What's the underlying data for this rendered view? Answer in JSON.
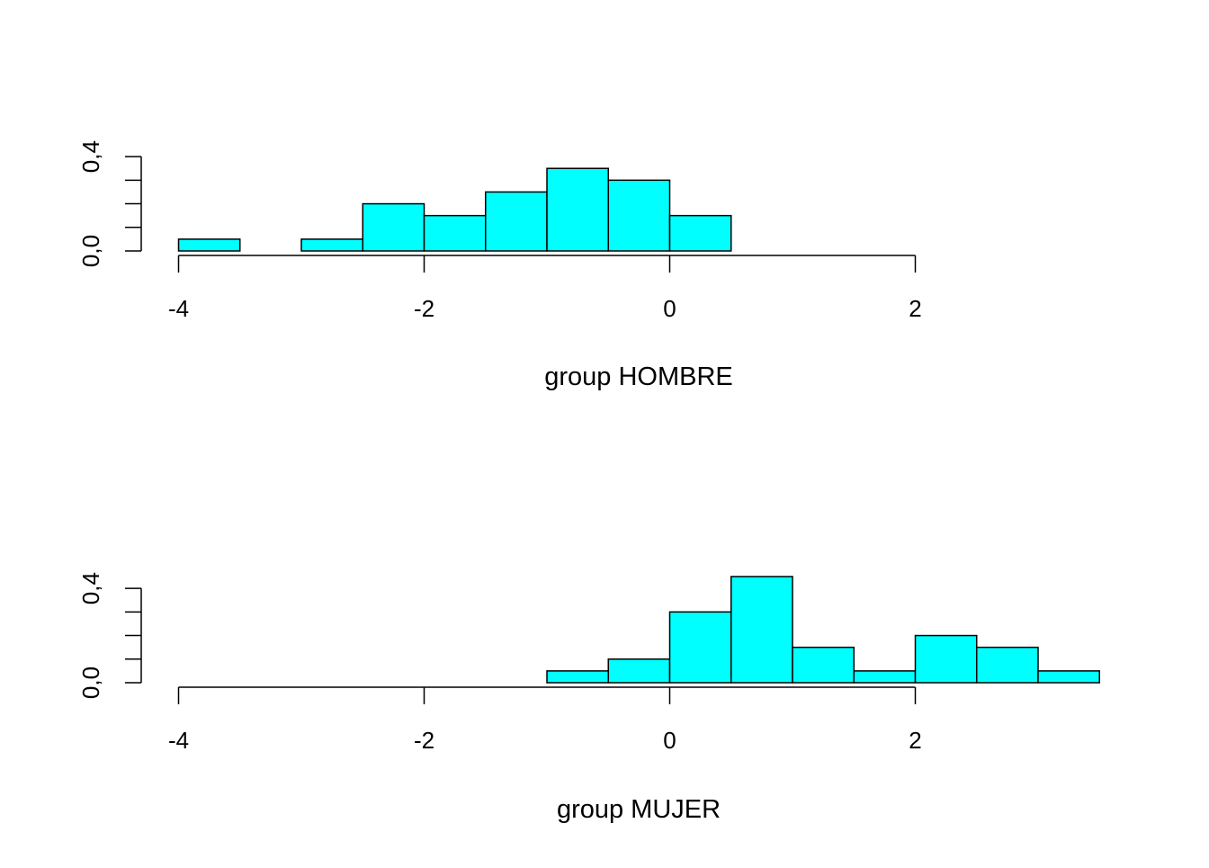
{
  "chart_data": [
    {
      "type": "bar",
      "xlabel": "group HOMBRE",
      "ylabel": "",
      "bin_width": 0.5,
      "bins": [
        [
          -4.0,
          -3.5
        ],
        [
          -3.5,
          -3.0
        ],
        [
          -3.0,
          -2.5
        ],
        [
          -2.5,
          -2.0
        ],
        [
          -2.0,
          -1.5
        ],
        [
          -1.5,
          -1.0
        ],
        [
          -1.0,
          -0.5
        ],
        [
          -0.5,
          0.0
        ],
        [
          0.0,
          0.5
        ],
        [
          0.5,
          1.0
        ],
        [
          1.0,
          1.5
        ],
        [
          1.5,
          2.0
        ],
        [
          2.0,
          2.5
        ],
        [
          2.5,
          3.0
        ],
        [
          3.0,
          3.5
        ]
      ],
      "values": [
        0.05,
        0.0,
        0.05,
        0.2,
        0.15,
        0.25,
        0.35,
        0.3,
        0.15,
        0.0,
        0.0,
        0.0,
        0.0,
        0.0,
        0.0
      ],
      "xlim": [
        -4,
        3.5
      ],
      "ylim": [
        0,
        0.45
      ],
      "x_ticks": [
        -4,
        -2,
        0,
        2
      ],
      "x_tick_labels": [
        "-4",
        "-2",
        "0",
        "2"
      ],
      "y_ticks": [
        0,
        0.1,
        0.2,
        0.3,
        0.4
      ],
      "y_tick_labels": [
        "0,0",
        "0,4"
      ],
      "y_labeled_ticks": [
        0,
        0.4
      ],
      "bar_color": "#00ffff",
      "grid": false
    },
    {
      "type": "bar",
      "xlabel": "group MUJER",
      "ylabel": "",
      "bin_width": 0.5,
      "bins": [
        [
          -4.0,
          -3.5
        ],
        [
          -3.5,
          -3.0
        ],
        [
          -3.0,
          -2.5
        ],
        [
          -2.5,
          -2.0
        ],
        [
          -2.0,
          -1.5
        ],
        [
          -1.5,
          -1.0
        ],
        [
          -1.0,
          -0.5
        ],
        [
          -0.5,
          0.0
        ],
        [
          0.0,
          0.5
        ],
        [
          0.5,
          1.0
        ],
        [
          1.0,
          1.5
        ],
        [
          1.5,
          2.0
        ],
        [
          2.0,
          2.5
        ],
        [
          2.5,
          3.0
        ],
        [
          3.0,
          3.5
        ]
      ],
      "values": [
        0.0,
        0.0,
        0.0,
        0.0,
        0.0,
        0.0,
        0.05,
        0.1,
        0.3,
        0.45,
        0.15,
        0.05,
        0.2,
        0.15,
        0.05
      ],
      "xlim": [
        -4,
        3.5
      ],
      "ylim": [
        0,
        0.45
      ],
      "x_ticks": [
        -4,
        -2,
        0,
        2
      ],
      "x_tick_labels": [
        "-4",
        "-2",
        "0",
        "2"
      ],
      "y_ticks": [
        0,
        0.1,
        0.2,
        0.3,
        0.4
      ],
      "y_tick_labels": [
        "0,0",
        "0,4"
      ],
      "y_labeled_ticks": [
        0,
        0.4
      ],
      "bar_color": "#00ffff",
      "grid": false
    }
  ]
}
